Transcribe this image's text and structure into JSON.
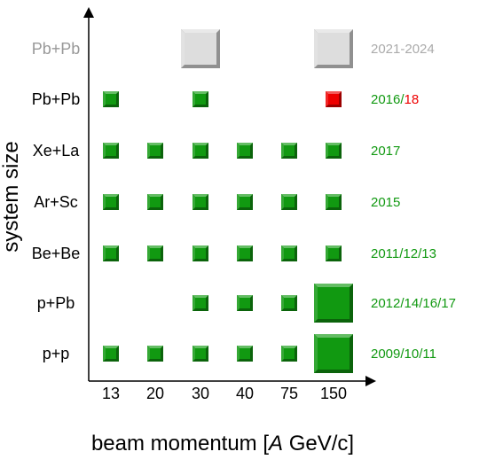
{
  "chart_data": {
    "type": "scatter",
    "xlabel": {
      "prefix": "beam momentum [",
      "italic": "A",
      "suffix": " GeV/c]"
    },
    "ylabel": "system size",
    "categories": [
      "13",
      "20",
      "30",
      "40",
      "75",
      "150"
    ],
    "rows": [
      {
        "system": "Pb+Pb",
        "years": [
          {
            "text": "2021-2024",
            "color": "#aaaaaa"
          }
        ],
        "label_color": "#999999",
        "points": [
          {
            "x": "30",
            "size": "large",
            "color": "#dddddd"
          },
          {
            "x": "150",
            "size": "large",
            "color": "#dddddd"
          }
        ]
      },
      {
        "system": "Pb+Pb",
        "years": [
          {
            "text": "2016/",
            "color": "#119911"
          },
          {
            "text": "18",
            "color": "#ee0000"
          }
        ],
        "label_color": "#000000",
        "points": [
          {
            "x": "13",
            "size": "small",
            "color": "#119911"
          },
          {
            "x": "30",
            "size": "small",
            "color": "#119911"
          },
          {
            "x": "150",
            "size": "small",
            "color": "#ee0000"
          }
        ]
      },
      {
        "system": "Xe+La",
        "years": [
          {
            "text": "2017",
            "color": "#119911"
          }
        ],
        "label_color": "#000000",
        "points": [
          {
            "x": "13",
            "size": "small",
            "color": "#119911"
          },
          {
            "x": "20",
            "size": "small",
            "color": "#119911"
          },
          {
            "x": "30",
            "size": "small",
            "color": "#119911"
          },
          {
            "x": "40",
            "size": "small",
            "color": "#119911"
          },
          {
            "x": "75",
            "size": "small",
            "color": "#119911"
          },
          {
            "x": "150",
            "size": "small",
            "color": "#119911"
          }
        ]
      },
      {
        "system": "Ar+Sc",
        "years": [
          {
            "text": "2015",
            "color": "#119911"
          }
        ],
        "label_color": "#000000",
        "points": [
          {
            "x": "13",
            "size": "small",
            "color": "#119911"
          },
          {
            "x": "20",
            "size": "small",
            "color": "#119911"
          },
          {
            "x": "30",
            "size": "small",
            "color": "#119911"
          },
          {
            "x": "40",
            "size": "small",
            "color": "#119911"
          },
          {
            "x": "75",
            "size": "small",
            "color": "#119911"
          },
          {
            "x": "150",
            "size": "small",
            "color": "#119911"
          }
        ]
      },
      {
        "system": "Be+Be",
        "years": [
          {
            "text": "2011/12/13",
            "color": "#119911"
          }
        ],
        "label_color": "#000000",
        "points": [
          {
            "x": "13",
            "size": "small",
            "color": "#119911"
          },
          {
            "x": "20",
            "size": "small",
            "color": "#119911"
          },
          {
            "x": "30",
            "size": "small",
            "color": "#119911"
          },
          {
            "x": "40",
            "size": "small",
            "color": "#119911"
          },
          {
            "x": "75",
            "size": "small",
            "color": "#119911"
          },
          {
            "x": "150",
            "size": "small",
            "color": "#119911"
          }
        ]
      },
      {
        "system": "p+Pb",
        "years": [
          {
            "text": "2012/14/16/17",
            "color": "#119911"
          }
        ],
        "label_color": "#000000",
        "points": [
          {
            "x": "30",
            "size": "small",
            "color": "#119911"
          },
          {
            "x": "40",
            "size": "small",
            "color": "#119911"
          },
          {
            "x": "75",
            "size": "small",
            "color": "#119911"
          },
          {
            "x": "150",
            "size": "large",
            "color": "#119911"
          }
        ]
      },
      {
        "system": "p+p",
        "years": [
          {
            "text": "2009/10/11",
            "color": "#119911"
          }
        ],
        "label_color": "#000000",
        "points": [
          {
            "x": "13",
            "size": "small",
            "color": "#119911"
          },
          {
            "x": "20",
            "size": "small",
            "color": "#119911"
          },
          {
            "x": "30",
            "size": "small",
            "color": "#119911"
          },
          {
            "x": "40",
            "size": "small",
            "color": "#119911"
          },
          {
            "x": "75",
            "size": "small",
            "color": "#119911"
          },
          {
            "x": "150",
            "size": "large",
            "color": "#119911"
          }
        ]
      }
    ]
  }
}
